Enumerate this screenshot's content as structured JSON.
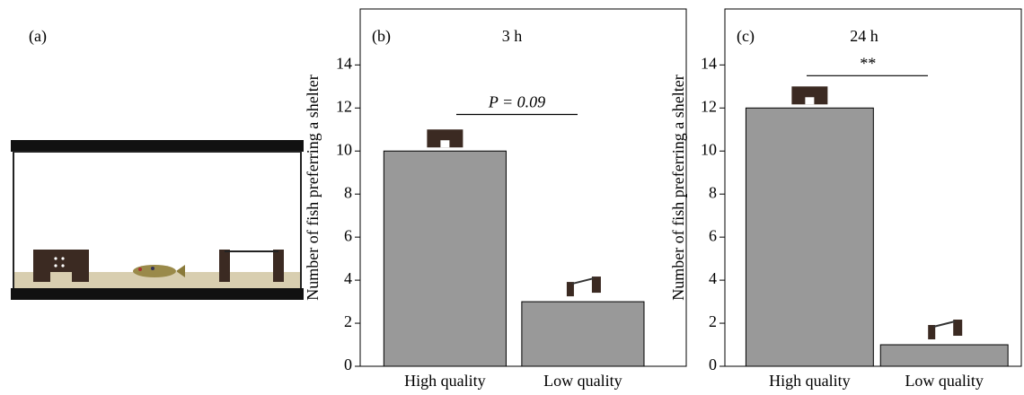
{
  "panel_a": {
    "label": "(a)"
  },
  "chart_data": [
    {
      "type": "bar",
      "panel_label": "(b)",
      "title": "3 h",
      "y_label": "Number of fish preferring a shelter",
      "categories": [
        "High quality",
        "Low quality"
      ],
      "values": [
        10,
        3
      ],
      "color": "#999999",
      "ylim": [
        0,
        16.6
      ],
      "yticks": [
        0,
        2,
        4,
        6,
        8,
        10,
        12,
        14
      ],
      "annotation": "P = 0.09"
    },
    {
      "type": "bar",
      "panel_label": "(c)",
      "title": "24 h",
      "y_label": "Number of fish preferring a shelter",
      "categories": [
        "High quality",
        "Low quality"
      ],
      "values": [
        12,
        1
      ],
      "color": "#999999",
      "ylim": [
        0,
        16.6
      ],
      "yticks": [
        0,
        2,
        4,
        6,
        8,
        10,
        12,
        14
      ],
      "annotation": "**"
    }
  ]
}
